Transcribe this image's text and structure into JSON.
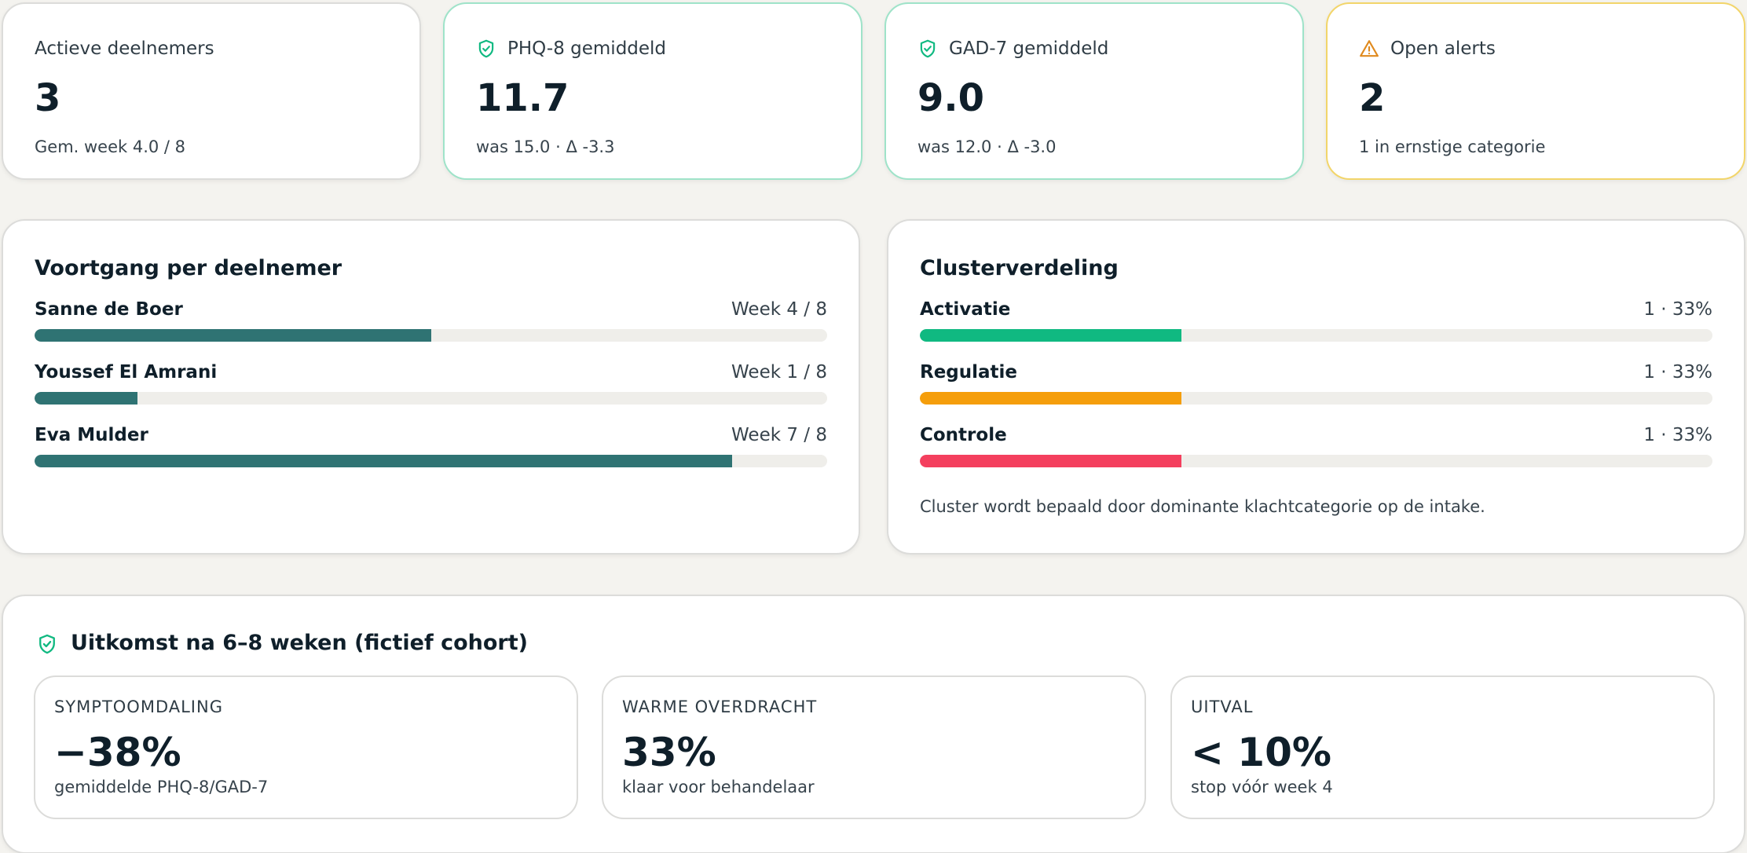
{
  "kpis": [
    {
      "label": "Actieve deelnemers",
      "value": "3",
      "sub": "Gem. week 4.0 / 8",
      "icon": "none"
    },
    {
      "label": "PHQ-8 gemiddeld",
      "value": "11.7",
      "sub": "was 15.0 · Δ -3.3",
      "icon": "shield-check-icon"
    },
    {
      "label": "GAD-7 gemiddeld",
      "value": "9.0",
      "sub": "was 12.0 · Δ -3.0",
      "icon": "shield-check-icon"
    },
    {
      "label": "Open alerts",
      "value": "2",
      "sub": "1 in ernstige categorie",
      "icon": "warning-triangle-icon"
    }
  ],
  "progress": {
    "title": "Voortgang per deelnemer",
    "participants": [
      {
        "name": "Sanne de Boer",
        "label": "Week 4 / 8",
        "fraction": 0.5
      },
      {
        "name": "Youssef El Amrani",
        "label": "Week 1 / 8",
        "fraction": 0.13
      },
      {
        "name": "Eva Mulder",
        "label": "Week 7 / 8",
        "fraction": 0.88
      }
    ]
  },
  "clusters": {
    "title": "Clusterverdeling",
    "items": [
      {
        "name": "Activatie",
        "label": "1 · 33%",
        "fraction": 0.33,
        "color": "#10b981"
      },
      {
        "name": "Regulatie",
        "label": "1 · 33%",
        "fraction": 0.33,
        "color": "#f59e0b"
      },
      {
        "name": "Controle",
        "label": "1 · 33%",
        "fraction": 0.33,
        "color": "#f43f5e"
      }
    ],
    "note": "Cluster wordt bepaald door dominante klachtcategorie op de intake."
  },
  "outcome": {
    "title": "Uitkomst na 6–8 weken (fictief cohort)",
    "stats": [
      {
        "label": "SYMPTOOMDALING",
        "value": "−38%",
        "sub": "gemiddelde PHQ-8/GAD-7"
      },
      {
        "label": "WARME OVERDRACHT",
        "value": "33%",
        "sub": "klaar voor behandelaar"
      },
      {
        "label": "UITVAL",
        "value": "< 10%",
        "sub": "stop vóór week 4"
      }
    ]
  },
  "colors": {
    "progress_fill": "#2f7373",
    "accent_green": "#10b981",
    "accent_warning": "#e08a1e"
  }
}
